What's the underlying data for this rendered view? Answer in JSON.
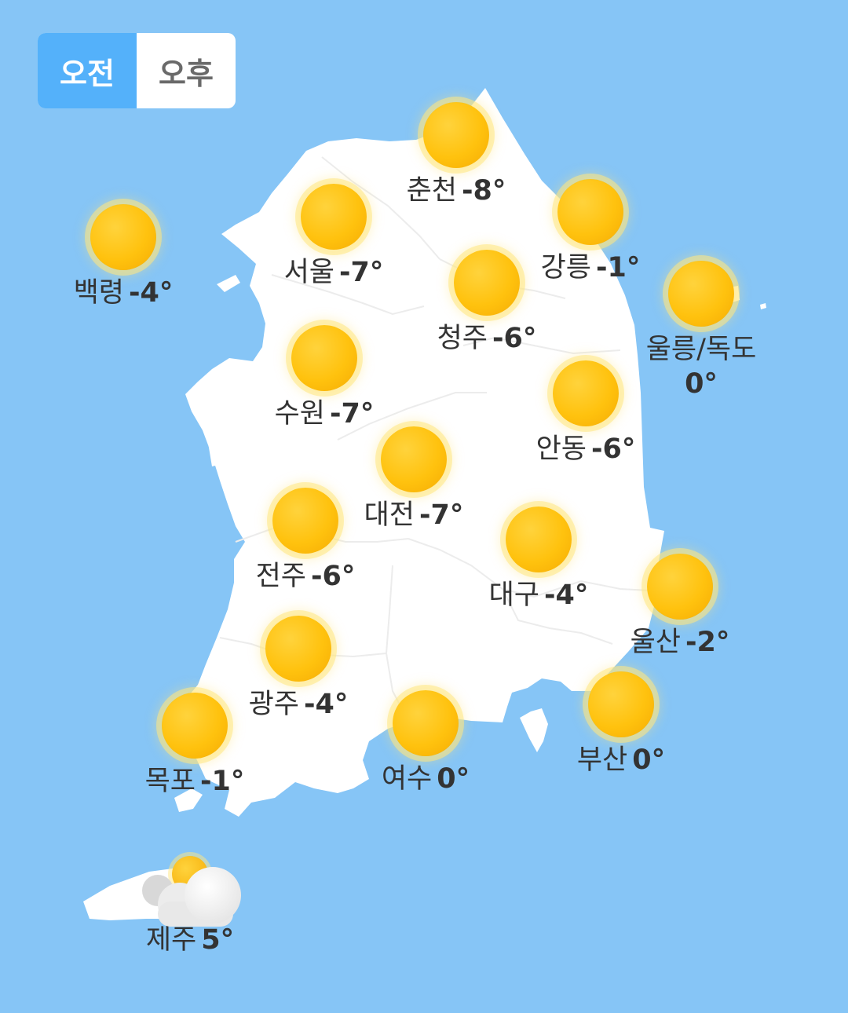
{
  "toggle": {
    "am_label": "오전",
    "pm_label": "오후",
    "selected": "am"
  },
  "colors": {
    "sea": "#86c5f6",
    "land": "#ffffff",
    "toggle_active": "#54b1fa",
    "sun": "#ffc20e"
  },
  "cities": [
    {
      "id": "baengnyeong",
      "name": "백령",
      "temp": "-4°",
      "icon": "sun-icon"
    },
    {
      "id": "seoul",
      "name": "서울",
      "temp": "-7°",
      "icon": "sun-icon"
    },
    {
      "id": "chuncheon",
      "name": "춘천",
      "temp": "-8°",
      "icon": "sun-icon"
    },
    {
      "id": "gangneung",
      "name": "강릉",
      "temp": "-1°",
      "icon": "sun-icon"
    },
    {
      "id": "ulleung",
      "name": "울릉/독도",
      "temp": "0°",
      "icon": "sun-icon"
    },
    {
      "id": "cheongju",
      "name": "청주",
      "temp": "-6°",
      "icon": "sun-icon"
    },
    {
      "id": "suwon",
      "name": "수원",
      "temp": "-7°",
      "icon": "sun-icon"
    },
    {
      "id": "andong",
      "name": "안동",
      "temp": "-6°",
      "icon": "sun-icon"
    },
    {
      "id": "daejeon",
      "name": "대전",
      "temp": "-7°",
      "icon": "sun-icon"
    },
    {
      "id": "jeonju",
      "name": "전주",
      "temp": "-6°",
      "icon": "sun-icon"
    },
    {
      "id": "daegu",
      "name": "대구",
      "temp": "-4°",
      "icon": "sun-icon"
    },
    {
      "id": "ulsan",
      "name": "울산",
      "temp": "-2°",
      "icon": "sun-icon"
    },
    {
      "id": "gwangju",
      "name": "광주",
      "temp": "-4°",
      "icon": "sun-icon"
    },
    {
      "id": "mokpo",
      "name": "목포",
      "temp": "-1°",
      "icon": "sun-icon"
    },
    {
      "id": "yeosu",
      "name": "여수",
      "temp": "0°",
      "icon": "sun-icon"
    },
    {
      "id": "busan",
      "name": "부산",
      "temp": "0°",
      "icon": "sun-icon"
    },
    {
      "id": "jeju",
      "name": "제주",
      "temp": "5°",
      "icon": "partly-cloudy-icon"
    }
  ]
}
